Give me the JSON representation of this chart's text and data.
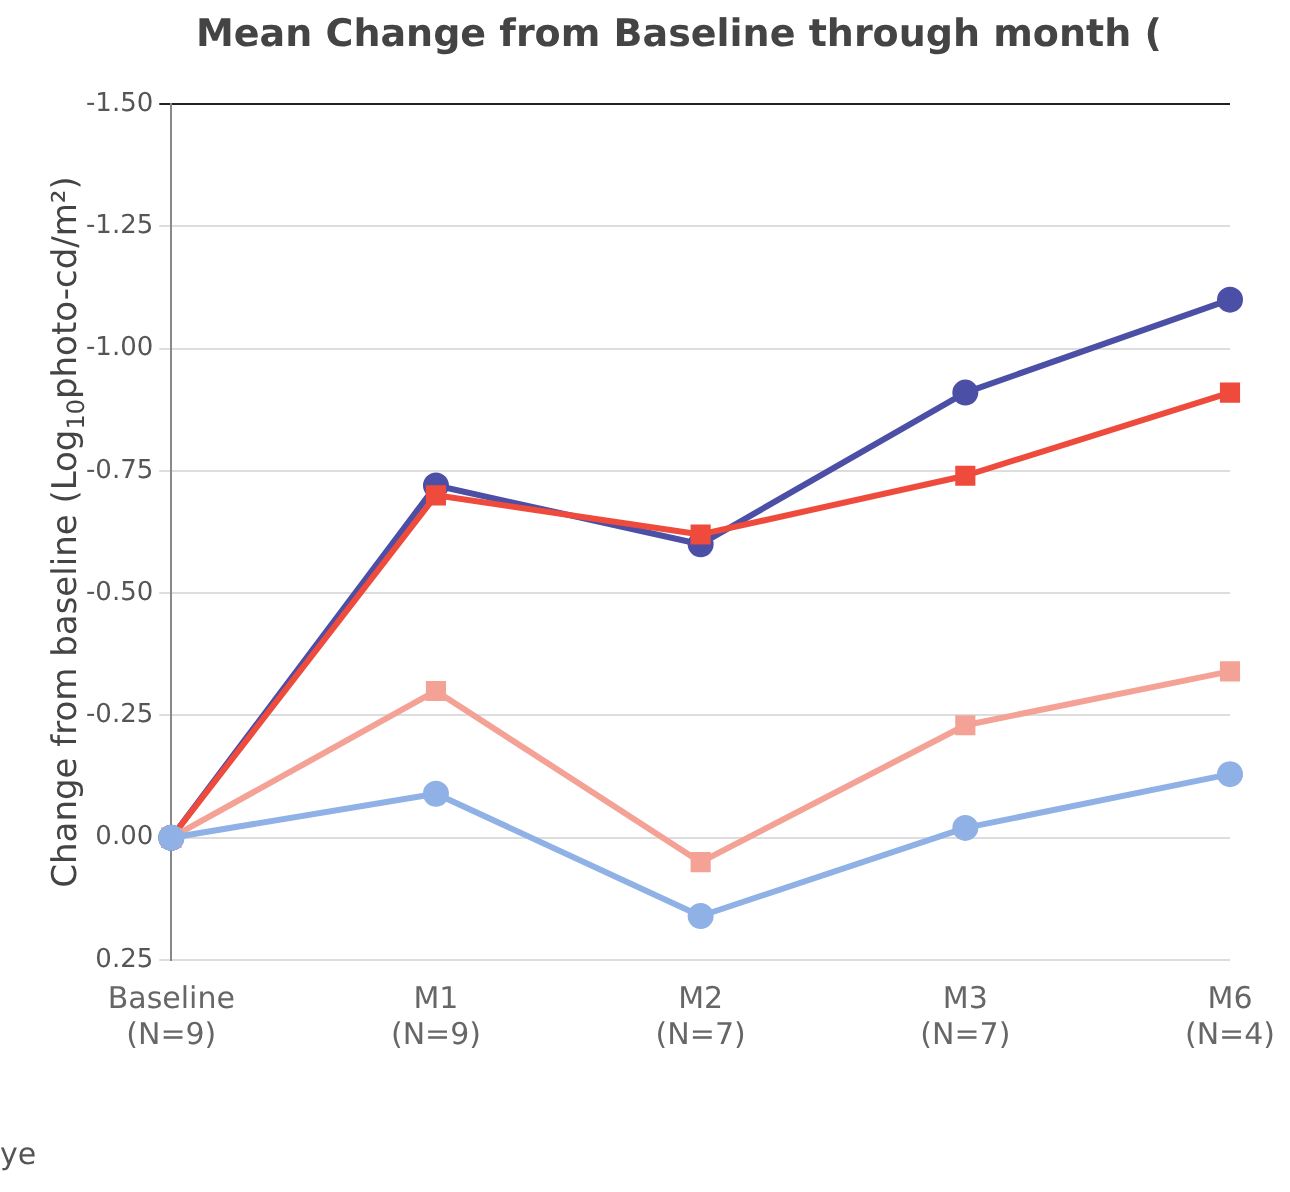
{
  "chart_data": {
    "type": "line",
    "title": "Mean Change from Baseline through month (",
    "ylabel": "Change from baseline (Log$_{10}$photo-cd/m²)",
    "categories": [
      "Baseline\n(N=9)",
      "M1\n(N=9)",
      "M2\n(N=7)",
      "M3\n(N=7)",
      "M6\n(N=4)"
    ],
    "series": [
      {
        "color": "#4b4fa6",
        "marker": "circle",
        "values": [
          0,
          -0.72,
          -0.6,
          -0.91,
          -1.1
        ]
      },
      {
        "color": "#ef4b3c",
        "marker": "square",
        "values": [
          0,
          -0.7,
          -0.62,
          -0.74,
          -0.91
        ]
      },
      {
        "color": "#f4a196",
        "marker": "square",
        "values": [
          0,
          -0.3,
          0.05,
          -0.23,
          -0.34
        ]
      },
      {
        "color": "#8fb1e6",
        "marker": "circle",
        "values": [
          0,
          -0.09,
          0.16,
          -0.02,
          -0.13
        ]
      }
    ],
    "ylim": [
      0.25,
      -1.5
    ],
    "yticks": [
      {
        "value": -1.5,
        "label": "-1.50"
      },
      {
        "value": -1.25,
        "label": "-1.25"
      },
      {
        "value": -1,
        "label": "-1.00"
      },
      {
        "value": -0.75,
        "label": "-0.75"
      },
      {
        "value": -0.5,
        "label": "-0.50"
      },
      {
        "value": -0.25,
        "label": "-0.25"
      },
      {
        "value": 0,
        "label": "0.00"
      },
      {
        "value": 0.25,
        "label": "0.25"
      }
    ],
    "grid": "y",
    "legend": false,
    "line_style": "solid",
    "annotations": [
      "ye"
    ]
  }
}
